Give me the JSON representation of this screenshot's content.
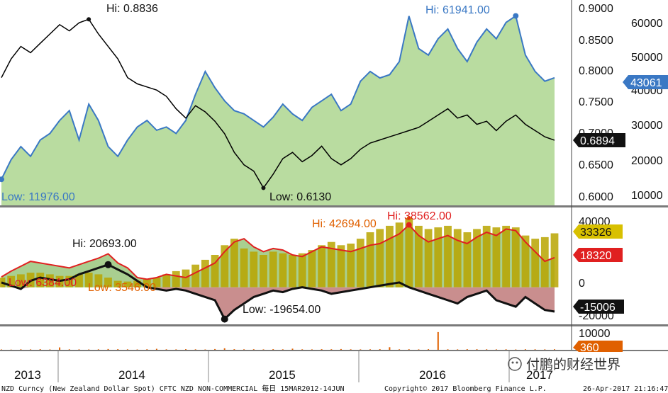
{
  "chart_data": [
    {
      "type": "line",
      "panel": "top",
      "series": [
        {
          "values": [
            0.79,
            0.82,
            0.84,
            0.83,
            0.845,
            0.86,
            0.875,
            0.865,
            0.878,
            0.8836,
            0.86,
            0.84,
            0.82,
            0.79,
            0.78,
            0.775,
            0.77,
            0.76,
            0.74,
            0.725,
            0.745,
            0.735,
            0.72,
            0.7,
            0.67,
            0.65,
            0.64,
            0.613,
            0.635,
            0.66,
            0.67,
            0.655,
            0.665,
            0.68,
            0.66,
            0.65,
            0.66,
            0.675,
            0.685,
            0.69,
            0.695,
            0.7,
            0.705,
            0.71,
            0.72,
            0.73,
            0.74,
            0.725,
            0.73,
            0.715,
            0.72,
            0.705,
            0.72,
            0.73,
            0.715,
            0.705,
            0.695,
            0.6894
          ],
          "color": "#000000",
          "axis": "left"
        },
        {
          "values": [
            11976,
            18000,
            22000,
            19000,
            24000,
            26000,
            30000,
            33000,
            24000,
            35000,
            30000,
            22000,
            19000,
            24000,
            28000,
            30000,
            27000,
            28000,
            26000,
            30000,
            38000,
            45000,
            40000,
            36000,
            33000,
            32000,
            30000,
            28000,
            31000,
            35000,
            32000,
            30000,
            34000,
            36000,
            38000,
            33000,
            35000,
            42000,
            45000,
            43000,
            44000,
            48000,
            61941,
            52000,
            50000,
            55000,
            58000,
            52000,
            48000,
            54000,
            58000,
            55000,
            60000,
            62000,
            50000,
            45000,
            42000,
            43061
          ],
          "color": "#3a78c4",
          "axis": "right"
        }
      ],
      "annotations": {
        "price_hi": "Hi: 0.8836",
        "price_low": "Low: 0.6130",
        "pos_hi": "Hi: 61941.00",
        "pos_low": "Low: 11976.00"
      },
      "left_axis_ticks": [
        "0.9000",
        "0.8500",
        "0.8000",
        "0.7500",
        "0.7000",
        "0.6500",
        "0.6000"
      ],
      "right_axis_ticks": [
        "60000",
        "50000",
        "40000",
        "30000",
        "20000",
        "10000"
      ],
      "badges": {
        "pos_last": "43061",
        "price_last": "0.6894"
      },
      "ylim_left": [
        0.585,
        0.91
      ],
      "ylim_right": [
        4000,
        66000
      ]
    },
    {
      "type": "area",
      "panel": "middle",
      "series": [
        {
          "values": [
            6384,
            10000,
            13000,
            16000,
            15000,
            14000,
            13000,
            12000,
            14000,
            16000,
            18000,
            20693,
            15000,
            12000,
            6000,
            5000,
            6000,
            8000,
            7000,
            6000,
            9000,
            12000,
            15000,
            22000,
            28000,
            30000,
            25000,
            22000,
            24000,
            23000,
            20000,
            19000,
            22000,
            25000,
            24000,
            23000,
            22000,
            24000,
            26000,
            27000,
            30000,
            33000,
            38562,
            32000,
            28000,
            30000,
            32000,
            29000,
            27000,
            31000,
            34000,
            32000,
            36000,
            35000,
            28000,
            22000,
            16000,
            18320
          ],
          "color": "#e02020"
        },
        {
          "values": [
            6000,
            7000,
            8000,
            9000,
            9000,
            8000,
            7000,
            7000,
            8000,
            9000,
            8000,
            6000,
            4000,
            3546,
            4000,
            5000,
            6000,
            8000,
            10000,
            11000,
            14000,
            17000,
            20000,
            26000,
            30000,
            24000,
            22000,
            20000,
            22000,
            21000,
            20000,
            21000,
            23000,
            26000,
            28000,
            26000,
            27000,
            30000,
            34000,
            36000,
            38000,
            40000,
            42694,
            38000,
            36000,
            37000,
            38000,
            36000,
            34000,
            36000,
            38000,
            37000,
            38000,
            37000,
            32000,
            30000,
            31000,
            33326
          ],
          "color": "#c8b400"
        },
        {
          "values": [
            3000,
            1000,
            -1000,
            4000,
            6000,
            5000,
            4000,
            5000,
            8000,
            10000,
            12000,
            14000,
            11000,
            8000,
            4000,
            0,
            -1000,
            -2000,
            -1000,
            -2000,
            -4000,
            -6000,
            -8000,
            -19654,
            -14000,
            -10000,
            -6000,
            -4000,
            -2000,
            -3000,
            -1000,
            0,
            -1000,
            -2000,
            -4000,
            -3000,
            -2000,
            -1000,
            0,
            1000,
            2000,
            3000,
            0,
            -2000,
            -4000,
            -6000,
            -8000,
            -10000,
            -6000,
            -4000,
            -2000,
            -8000,
            -10000,
            -12000,
            -6000,
            -10000,
            -14000,
            -15006
          ],
          "color": "#111111"
        }
      ],
      "annotations": {
        "hi_a": "Hi: 20693.00",
        "hi_b": "Hi: 42694.00",
        "hi_c": "Hi: 38562.00",
        "low_a": "Low: 6384.00",
        "low_b": "Low: 3546.00",
        "low_c": "Low: -19654.00"
      },
      "right_axis_ticks": [
        "40000",
        "20000",
        "0",
        "-20000"
      ],
      "badges": {
        "b1": "33326",
        "b2": "18320",
        "b3": "-15006"
      },
      "ylim": [
        -22000,
        48000
      ]
    },
    {
      "type": "bar",
      "panel": "bottom",
      "series": [
        {
          "values": [
            200,
            150,
            300,
            250,
            400,
            200,
            1500,
            300,
            250,
            200,
            300,
            500,
            400,
            300,
            200,
            350,
            600,
            300,
            250,
            400,
            300,
            200,
            500,
            900,
            400,
            300,
            350,
            250,
            400,
            300,
            700,
            300,
            250,
            400,
            350,
            500,
            300,
            250,
            300,
            400,
            1600,
            300,
            350,
            250,
            400,
            11000,
            300,
            250,
            400,
            360,
            300,
            250,
            300,
            200,
            350,
            300,
            250,
            360
          ],
          "color": "#e06000"
        }
      ],
      "right_axis_ticks": [
        "10000"
      ],
      "badges": {
        "last": "360"
      },
      "ylim": [
        0,
        14000
      ]
    }
  ],
  "x_labels": [
    "2013",
    "2014",
    "2015",
    "2016",
    "2017"
  ],
  "footer": {
    "left": "NZD Curncy (New Zealand Dollar Spot) CFTC NZD NON-COMMERCIAL  每日 15MAR2012-14JUN",
    "center": "Copyright© 2017 Bloomberg Finance L.P.",
    "right": "26-Apr-2017 21:16:47"
  },
  "watermark": "付鹏的财经世界",
  "colors": {
    "price_line": "#000000",
    "positions_line": "#3a78c4",
    "positions_fill": "#b9dca0",
    "net_red": "#e02020",
    "gold_bar": "#b8a400",
    "net_black": "#111111",
    "neg_fill": "#c98e8e",
    "bottom_bar": "#e06000",
    "badge_blue": "#3a78c4",
    "badge_dark": "#111111",
    "badge_gold": "#d8c000",
    "badge_red": "#e02020",
    "badge_orange": "#e06000"
  }
}
